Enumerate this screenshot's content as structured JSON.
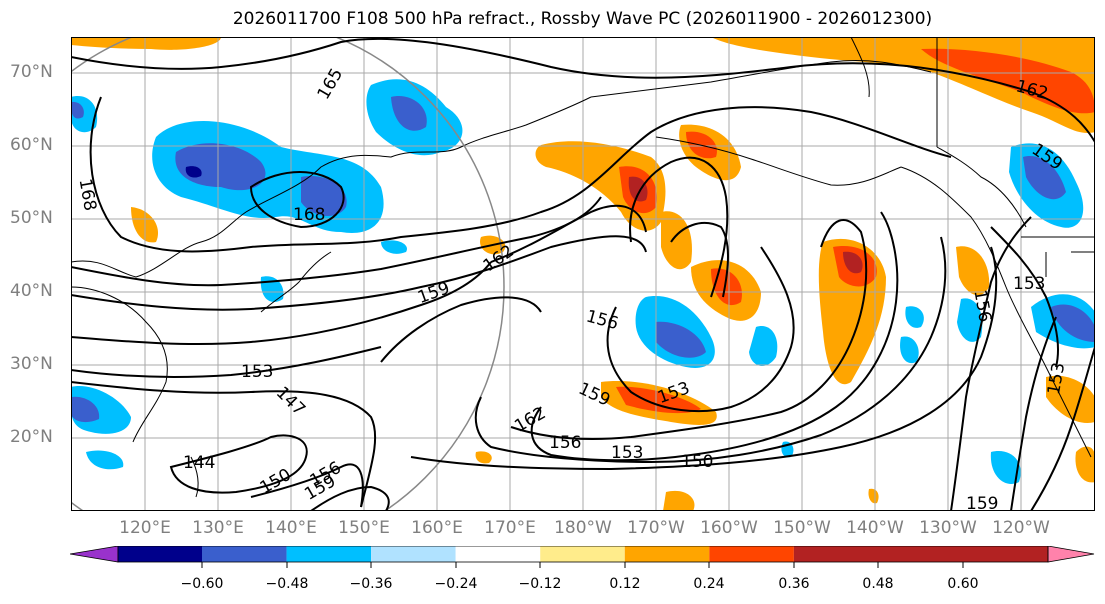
{
  "title": "2026011700 F108 500 hPa refract., Rossby Wave PC (2026011900 - 2026012300)",
  "lat_labels": [
    "70°N",
    "60°N",
    "50°N",
    "40°N",
    "30°N",
    "20°N"
  ],
  "lon_labels": [
    "120°E",
    "130°E",
    "140°E",
    "150°E",
    "160°E",
    "170°E",
    "180°W",
    "170°W",
    "160°W",
    "150°W",
    "140°W",
    "130°W",
    "120°W"
  ],
  "contour_labels": [
    "165",
    "168",
    "168",
    "162",
    "159",
    "156",
    "153",
    "147",
    "144",
    "150",
    "156",
    "159",
    "162",
    "159",
    "153",
    "156",
    "153",
    "150",
    "162",
    "156",
    "153",
    "159",
    "153",
    "159"
  ],
  "colorbar": {
    "ticks": [
      "−0.60",
      "−0.48",
      "−0.36",
      "−0.24",
      "−0.12",
      "0.12",
      "0.24",
      "0.36",
      "0.48",
      "0.60"
    ],
    "colors": [
      "#9932cc",
      "#00008b",
      "#3a5fcd",
      "#00bfff",
      "#b0e2ff",
      "#ffffff",
      "#ffec8b",
      "#ffa500",
      "#ff4500",
      "#b22222",
      "#ff82ab"
    ]
  }
}
